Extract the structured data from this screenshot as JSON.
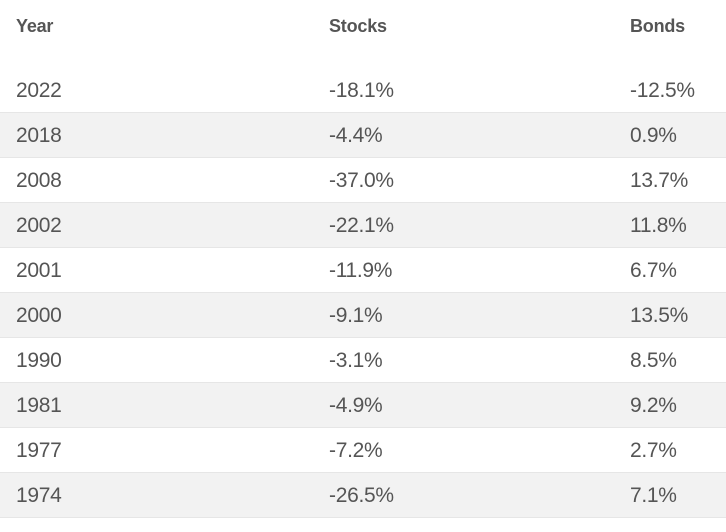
{
  "table": {
    "headers": {
      "year": "Year",
      "stocks": "Stocks",
      "bonds": "Bonds"
    },
    "rows": [
      {
        "year": "2022",
        "stocks": "-18.1%",
        "bonds": "-12.5%"
      },
      {
        "year": "2018",
        "stocks": "-4.4%",
        "bonds": "0.9%"
      },
      {
        "year": "2008",
        "stocks": "-37.0%",
        "bonds": "13.7%"
      },
      {
        "year": "2002",
        "stocks": "-22.1%",
        "bonds": "11.8%"
      },
      {
        "year": "2001",
        "stocks": "-11.9%",
        "bonds": "6.7%"
      },
      {
        "year": "2000",
        "stocks": "-9.1%",
        "bonds": "13.5%"
      },
      {
        "year": "1990",
        "stocks": "-3.1%",
        "bonds": "8.5%"
      },
      {
        "year": "1981",
        "stocks": "-4.9%",
        "bonds": "9.2%"
      },
      {
        "year": "1977",
        "stocks": "-7.2%",
        "bonds": "2.7%"
      },
      {
        "year": "1974",
        "stocks": "-26.5%",
        "bonds": "7.1%"
      }
    ]
  },
  "colors": {
    "text": "#555555",
    "stripe": "#f2f2f2",
    "divider": "#e6e6e6",
    "background": "#ffffff"
  }
}
